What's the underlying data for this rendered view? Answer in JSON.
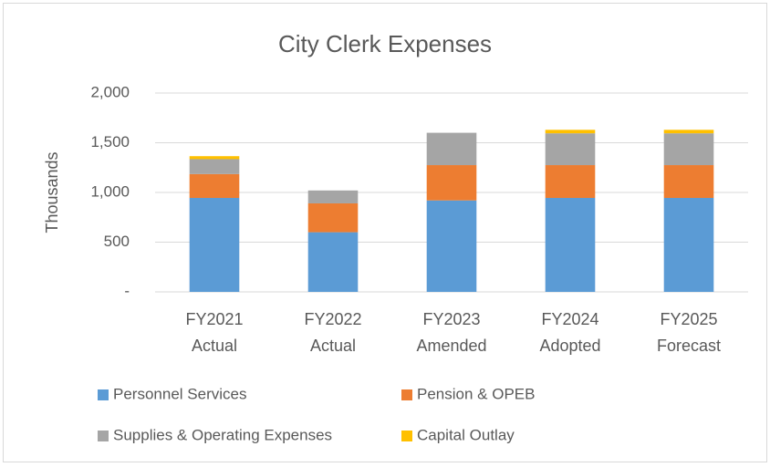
{
  "chart_data": {
    "type": "stacked_bar",
    "title": "City Clerk Expenses",
    "y_label": "Thousands",
    "categories": [
      "FY2021 Actual",
      "FY2022 Actual",
      "FY2023 Amended",
      "FY2024 Adopted",
      "FY2025 Forecast"
    ],
    "series": [
      {
        "name": "Personnel Services",
        "color": "#5b9bd5",
        "values": [
          945,
          600,
          920,
          945,
          945
        ]
      },
      {
        "name": "Pension & OPEB",
        "color": "#ed7d31",
        "values": [
          240,
          290,
          355,
          330,
          330
        ]
      },
      {
        "name": "Supplies & Operating Expenses",
        "color": "#a5a5a5",
        "values": [
          150,
          130,
          325,
          320,
          320
        ]
      },
      {
        "name": "Capital Outlay",
        "color": "#ffc000",
        "values": [
          30,
          0,
          0,
          35,
          35
        ]
      }
    ],
    "ylim": [
      0,
      2000
    ],
    "yticks": [
      {
        "value": 0,
        "label": "-"
      },
      500,
      {
        "value": 1000,
        "label": "1,000"
      },
      {
        "value": 1500,
        "label": "1,500"
      },
      {
        "value": 2000,
        "label": "2,000"
      }
    ],
    "grid": true,
    "legend": "bottom"
  }
}
